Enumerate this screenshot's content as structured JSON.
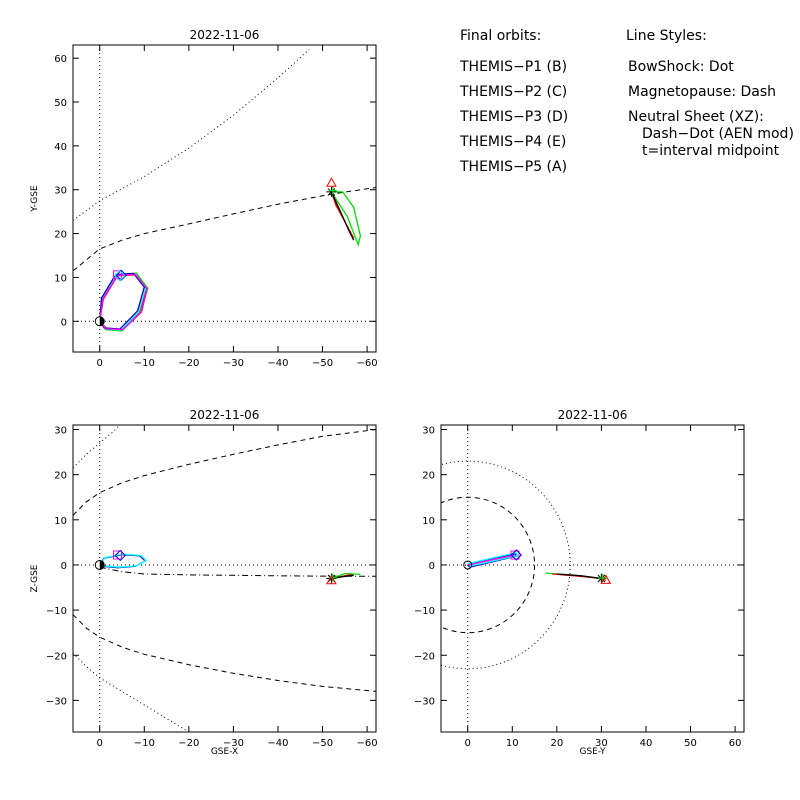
{
  "chart_data": [
    {
      "type": "line",
      "title": "2022-11-06",
      "xlabel": "",
      "ylabel": "Y-GSE",
      "xlim": [
        6,
        -62
      ],
      "ylim": [
        63,
        -7
      ],
      "xticks": [
        0,
        -10,
        -20,
        -30,
        -40,
        -50,
        -60
      ],
      "xtick_labels": [
        "0",
        "−10",
        "−20",
        "−30",
        "−40",
        "−50",
        "−60"
      ],
      "yticks": [
        0,
        10,
        20,
        30,
        40,
        50,
        60
      ],
      "ytick_labels": [
        "0",
        "10",
        "20",
        "30",
        "40",
        "50",
        "60"
      ],
      "ref_lines": [
        {
          "axis": "x",
          "value": 0
        },
        {
          "axis": "y",
          "value": 0
        }
      ],
      "boundaries": [
        {
          "style": "dash",
          "points": [
            [
              6,
              11.5
            ],
            [
              0,
              16.5
            ],
            [
              -5,
              18.5
            ],
            [
              -10,
              20
            ],
            [
              -20,
              22.2
            ],
            [
              -30,
              24.5
            ],
            [
              -40,
              26.7
            ],
            [
              -52,
              29
            ],
            [
              -62,
              30.5
            ]
          ]
        },
        {
          "style": "dot",
          "points": [
            [
              6,
              23
            ],
            [
              0,
              27.5
            ],
            [
              -10,
              33
            ],
            [
              -20,
              39.5
            ],
            [
              -30,
              47
            ],
            [
              -40,
              55.5
            ],
            [
              -47,
              62
            ]
          ]
        }
      ],
      "series": [
        {
          "color": "#ff0000",
          "points": [
            [
              0,
              0
            ],
            [
              -1.5,
              -1.6
            ],
            [
              -5,
              -1.8
            ],
            [
              -9,
              2
            ],
            [
              -10.5,
              7.3
            ],
            [
              -8,
              10.6
            ],
            [
              -4,
              10.4
            ],
            [
              -0.8,
              5
            ],
            [
              0,
              0
            ]
          ]
        },
        {
          "color": "#00dd00",
          "points": [
            [
              0,
              0
            ],
            [
              -1.3,
              -1.9
            ],
            [
              -5,
              -2.2
            ],
            [
              -9.2,
              2
            ],
            [
              -10.8,
              7.5
            ],
            [
              -8.2,
              11
            ],
            [
              -4,
              10.6
            ],
            [
              -0.6,
              5
            ],
            [
              0,
              0
            ]
          ]
        },
        {
          "color": "#00ffff",
          "points": [
            [
              0,
              0
            ],
            [
              -1.2,
              -1.7
            ],
            [
              -4.8,
              -2
            ],
            [
              -8.8,
              2.2
            ],
            [
              -10.3,
              7.6
            ],
            [
              -7.8,
              10.8
            ],
            [
              -3.8,
              10.6
            ],
            [
              -0.5,
              5.2
            ],
            [
              0,
              0
            ]
          ]
        },
        {
          "color": "#0000cc",
          "points": [
            [
              0,
              0
            ],
            [
              -1,
              -1.5
            ],
            [
              -4.5,
              -1.8
            ],
            [
              -8.5,
              2.4
            ],
            [
              -10,
              7.8
            ],
            [
              -7.6,
              10.9
            ],
            [
              -3.6,
              10.7
            ],
            [
              -0.4,
              5.3
            ],
            [
              0,
              0
            ]
          ]
        },
        {
          "color": "#ff00ff",
          "points": [
            [
              0,
              0
            ],
            [
              -1.4,
              -1.7
            ],
            [
              -5.2,
              -1.9
            ],
            [
              -9.4,
              2.1
            ],
            [
              -10.6,
              7.4
            ],
            [
              -8,
              10.7
            ],
            [
              -4,
              10.5
            ],
            [
              -0.7,
              5.1
            ],
            [
              0,
              0
            ]
          ]
        },
        {
          "color": "#ff0000",
          "points": [
            [
              -52,
              29.5
            ],
            [
              -54,
              25
            ],
            [
              -56.5,
              19.5
            ],
            [
              -57,
              19
            ],
            [
              -53,
              26.5
            ],
            [
              -52,
              29.5
            ]
          ]
        },
        {
          "color": "#00dd00",
          "points": [
            [
              -52,
              29.5
            ],
            [
              -55.5,
              24
            ],
            [
              -58,
              17.5
            ],
            [
              -58.5,
              19.5
            ],
            [
              -57,
              26
            ],
            [
              -54.5,
              29.5
            ],
            [
              -52,
              29.5
            ]
          ]
        },
        {
          "color": "#000000",
          "points": [
            [
              -52,
              29.5
            ],
            [
              -54,
              25
            ],
            [
              -56,
              20.5
            ],
            [
              -57,
              18.5
            ]
          ]
        }
      ],
      "markers": [
        {
          "shape": "earth",
          "x": 0,
          "y": 0
        },
        {
          "shape": "square",
          "color": "#ff00ff",
          "x": -4,
          "y": 10.6
        },
        {
          "shape": "diamond",
          "color": "#0000cc",
          "x": -4.8,
          "y": 10.5
        },
        {
          "shape": "diamond",
          "color": "#00ffff",
          "x": -4.5,
          "y": 10.4
        },
        {
          "shape": "asterisk",
          "color": "#000000",
          "x": -52,
          "y": 29.5
        },
        {
          "shape": "plus",
          "color": "#00dd00",
          "x": -52.3,
          "y": 29.8
        },
        {
          "shape": "triangle",
          "color": "#ff0000",
          "x": -52,
          "y": 31.6
        }
      ]
    },
    {
      "type": "line",
      "title": "2022-11-06",
      "xlabel": "GSE-X",
      "ylabel": "Z-GSE",
      "xlim": [
        6,
        -62
      ],
      "ylim": [
        31,
        -37
      ],
      "xticks": [
        0,
        -10,
        -20,
        -30,
        -40,
        -50,
        -60
      ],
      "xtick_labels": [
        "0",
        "−10",
        "−20",
        "−30",
        "−40",
        "−50",
        "−60"
      ],
      "yticks": [
        30,
        20,
        10,
        0,
        -10,
        -20,
        -30
      ],
      "ytick_labels": [
        "30",
        "20",
        "10",
        "0",
        "−10",
        "−20",
        "−30"
      ],
      "ref_lines": [
        {
          "axis": "x",
          "value": 0
        },
        {
          "axis": "y",
          "value": 0
        }
      ],
      "boundaries": [
        {
          "style": "dash",
          "points": [
            [
              6,
              11
            ],
            [
              3,
              14
            ],
            [
              0,
              16
            ],
            [
              -5,
              18.2
            ],
            [
              -10,
              19.8
            ],
            [
              -20,
              22.3
            ],
            [
              -30,
              24.5
            ],
            [
              -40,
              26.6
            ],
            [
              -50,
              28.5
            ],
            [
              -62,
              30
            ]
          ]
        },
        {
          "style": "dash",
          "points": [
            [
              6,
              -11
            ],
            [
              3,
              -14
            ],
            [
              0,
              -16
            ],
            [
              -5,
              -18.2
            ],
            [
              -10,
              -19.8
            ],
            [
              -20,
              -22.1
            ],
            [
              -30,
              -24
            ],
            [
              -40,
              -25.6
            ],
            [
              -50,
              -26.9
            ],
            [
              -62,
              -28
            ]
          ]
        },
        {
          "style": "dot",
          "points": [
            [
              6,
              21.5
            ],
            [
              3,
              24.5
            ],
            [
              0,
              27
            ],
            [
              -3,
              29.5
            ],
            [
              -4.5,
              31
            ]
          ]
        },
        {
          "style": "dot",
          "points": [
            [
              6,
              -19.5
            ],
            [
              3,
              -22.5
            ],
            [
              0,
              -25
            ],
            [
              -5,
              -28
            ],
            [
              -10,
              -31
            ],
            [
              -15,
              -34
            ],
            [
              -20,
              -37
            ]
          ]
        },
        {
          "style": "dash-dot",
          "points": [
            [
              0,
              -0.5
            ],
            [
              -5,
              -1.5
            ],
            [
              -10,
              -2
            ],
            [
              -20,
              -2.2
            ],
            [
              -30,
              -2.3
            ],
            [
              -40,
              -2.4
            ],
            [
              -52,
              -2.5
            ],
            [
              -62,
              -2.5
            ]
          ]
        }
      ],
      "series": [
        {
          "color": "#0000cc",
          "points": [
            [
              0,
              0
            ],
            [
              -1,
              1.5
            ],
            [
              -5,
              2.3
            ],
            [
              -9,
              2
            ],
            [
              -10.2,
              0.9
            ],
            [
              -8,
              -0.3
            ],
            [
              -4,
              -0.6
            ],
            [
              -0.5,
              -0.3
            ],
            [
              0,
              0
            ]
          ]
        },
        {
          "color": "#00ffff",
          "points": [
            [
              0,
              0
            ],
            [
              -1.2,
              1.6
            ],
            [
              -5,
              2.4
            ],
            [
              -9.2,
              2.1
            ],
            [
              -10.4,
              1
            ],
            [
              -8.2,
              -0.2
            ],
            [
              -4.2,
              -0.5
            ],
            [
              -0.6,
              -0.2
            ],
            [
              0,
              0
            ]
          ]
        },
        {
          "color": "#ff0000",
          "points": [
            [
              -52,
              -3
            ],
            [
              -55,
              -2.4
            ],
            [
              -57,
              -2
            ]
          ]
        },
        {
          "color": "#00dd00",
          "points": [
            [
              -52,
              -3
            ],
            [
              -55,
              -1.9
            ],
            [
              -58.5,
              -2.1
            ]
          ]
        },
        {
          "color": "#000000",
          "points": [
            [
              -52,
              -3
            ],
            [
              -54.5,
              -2.6
            ],
            [
              -57,
              -2.3
            ]
          ]
        }
      ],
      "markers": [
        {
          "shape": "earth",
          "x": 0,
          "y": 0
        },
        {
          "shape": "square",
          "color": "#ff00ff",
          "x": -4,
          "y": 2.2
        },
        {
          "shape": "diamond",
          "color": "#0000cc",
          "x": -4.6,
          "y": 2.1
        },
        {
          "shape": "asterisk",
          "color": "#000000",
          "x": -52,
          "y": -3
        },
        {
          "shape": "plus",
          "color": "#00dd00",
          "x": -52.3,
          "y": -2.8
        },
        {
          "shape": "triangle",
          "color": "#ff0000",
          "x": -52,
          "y": -3.4
        }
      ]
    },
    {
      "type": "line",
      "title": "2022-11-06",
      "xlabel": "GSE-Y",
      "ylabel": "",
      "xlim": [
        -6,
        62
      ],
      "ylim": [
        31,
        -37
      ],
      "xticks": [
        0,
        10,
        20,
        30,
        40,
        50,
        60
      ],
      "xtick_labels": [
        "0",
        "10",
        "20",
        "30",
        "40",
        "50",
        "60"
      ],
      "yticks": [
        30,
        20,
        10,
        0,
        -10,
        -20,
        -30
      ],
      "ytick_labels": [
        "30",
        "20",
        "10",
        "0",
        "−10",
        "−20",
        "−30"
      ],
      "ref_lines": [
        {
          "axis": "x",
          "value": 0
        },
        {
          "axis": "y",
          "value": 0
        }
      ],
      "circles": [
        {
          "style": "dash",
          "cx": 0,
          "cy": 0,
          "r": 15
        },
        {
          "style": "dot",
          "cx": 0,
          "cy": 0,
          "r": 23
        }
      ],
      "series": [
        {
          "color": "#0000cc",
          "points": [
            [
              0,
              0
            ],
            [
              10.5,
              2.5
            ],
            [
              11,
              2
            ],
            [
              0.5,
              -0.5
            ],
            [
              0,
              0
            ]
          ]
        },
        {
          "color": "#00ffff",
          "points": [
            [
              0,
              0.3
            ],
            [
              10.8,
              2.7
            ],
            [
              11.2,
              2.1
            ],
            [
              0.4,
              -0.3
            ]
          ]
        },
        {
          "color": "#ff00ff",
          "points": [
            [
              0,
              0
            ],
            [
              10.5,
              2.2
            ]
          ]
        },
        {
          "color": "#00dd00",
          "points": [
            [
              17.5,
              -1.8
            ],
            [
              24,
              -2.3
            ],
            [
              30,
              -3
            ]
          ]
        },
        {
          "color": "#ff0000",
          "points": [
            [
              19,
              -2
            ],
            [
              25,
              -2.5
            ],
            [
              30,
              -3
            ],
            [
              31,
              -3.4
            ]
          ]
        },
        {
          "color": "#000000",
          "points": [
            [
              20,
              -2
            ],
            [
              25.5,
              -2.4
            ],
            [
              30,
              -3
            ]
          ]
        }
      ],
      "markers": [
        {
          "shape": "circle",
          "color": "#000000",
          "x": 0,
          "y": 0
        },
        {
          "shape": "square",
          "color": "#ff00ff",
          "x": 10.6,
          "y": 2.2
        },
        {
          "shape": "diamond",
          "color": "#0000cc",
          "x": 10.9,
          "y": 2.2
        },
        {
          "shape": "asterisk",
          "color": "#000000",
          "x": 30,
          "y": -3
        },
        {
          "shape": "plus",
          "color": "#00dd00",
          "x": 30.3,
          "y": -2.9
        },
        {
          "shape": "triangle",
          "color": "#ff0000",
          "x": 31,
          "y": -3.3
        }
      ]
    }
  ],
  "legend": {
    "title": "Final orbits:",
    "entries": [
      {
        "label": "THEMIS−P1 (B)",
        "color": "#ff0000"
      },
      {
        "label": "THEMIS−P2 (C)",
        "color": "#00dd00"
      },
      {
        "label": "THEMIS−P3 (D)",
        "color": "#00ffff"
      },
      {
        "label": "THEMIS−P4 (E)",
        "color": "#0000cc"
      },
      {
        "label": "THEMIS−P5 (A)",
        "color": "#ff00ff"
      }
    ]
  },
  "line_styles": {
    "title": "Line Styles:",
    "lines": [
      "BowShock: Dot",
      "Magnetopause: Dash",
      "Neutral Sheet (XZ):",
      "Dash−Dot (AEN mod)",
      "t=interval midpoint"
    ]
  }
}
